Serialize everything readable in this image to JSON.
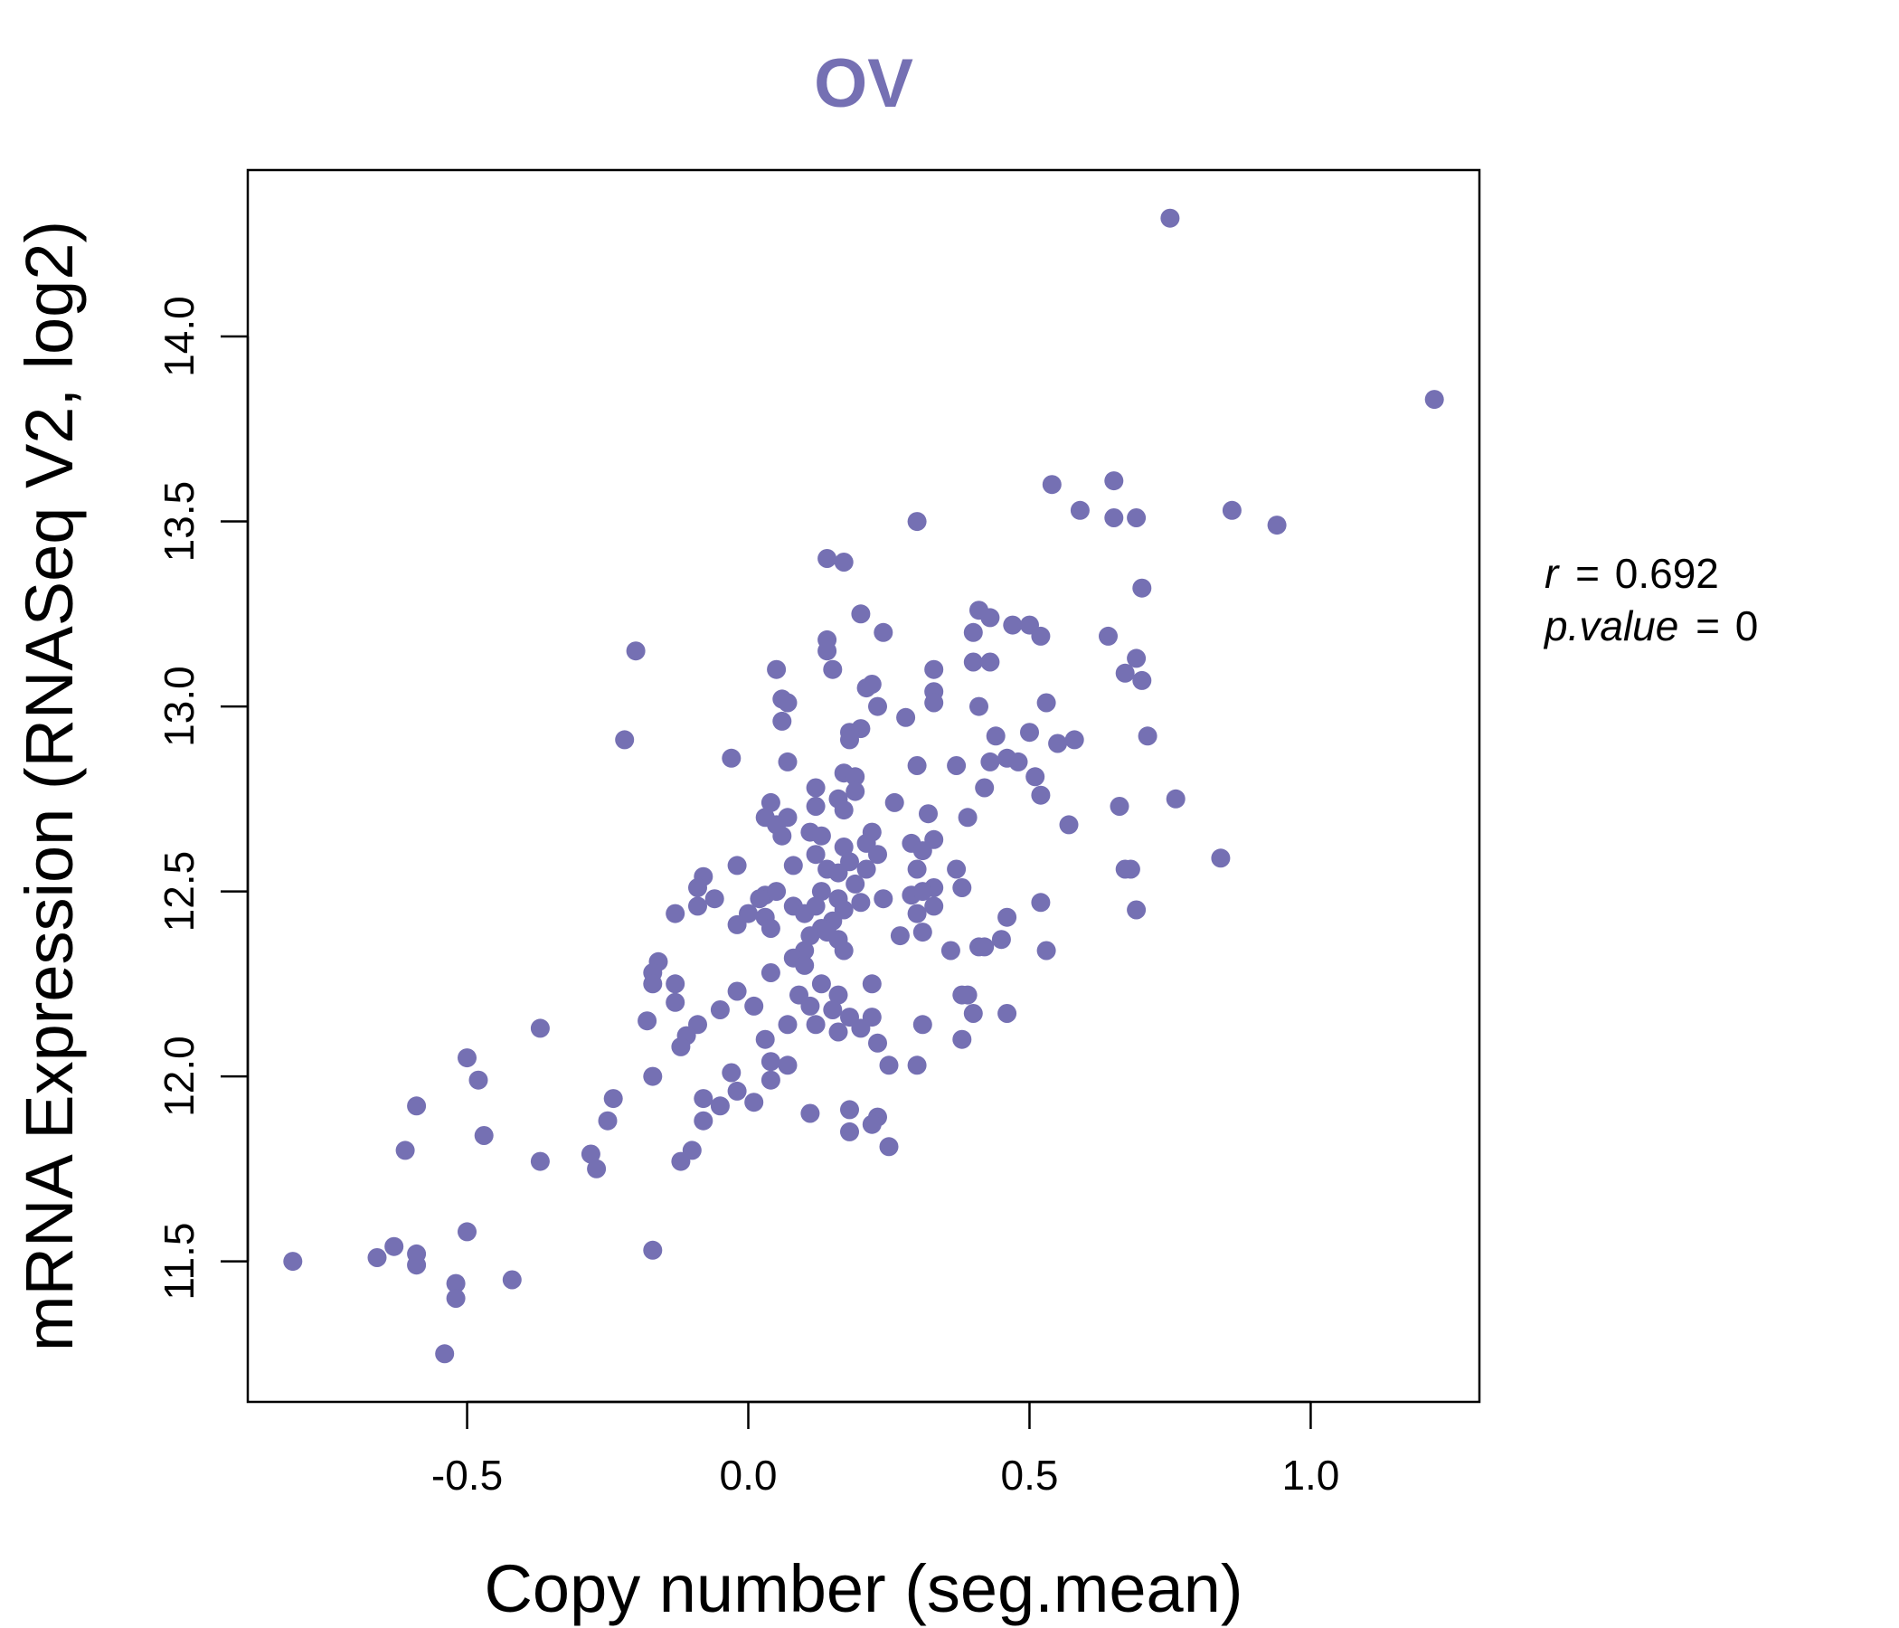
{
  "chart_data": {
    "type": "scatter",
    "title": "OV",
    "xlabel": "Copy number (seg.mean)",
    "ylabel": "mRNA Expression (RNASeq V2, log2)",
    "xlim": [
      -0.89,
      1.3
    ],
    "ylim": [
      11.12,
      14.45
    ],
    "xticks": [
      -0.5,
      0.0,
      0.5,
      1.0
    ],
    "xtick_labels": [
      "-0.5",
      "0.0",
      "0.5",
      "1.0"
    ],
    "yticks": [
      11.5,
      12.0,
      12.5,
      13.0,
      13.5,
      14.0
    ],
    "ytick_labels": [
      "11.5",
      "12.0",
      "12.5",
      "13.0",
      "13.5",
      "14.0"
    ],
    "grid": false,
    "colors": {
      "points": "#7570b3",
      "title": "#7570b3",
      "axes": "#000000"
    },
    "annotations": [
      {
        "label": "r",
        "value": "0.692"
      },
      {
        "label": "p.value",
        "value": "0"
      }
    ],
    "points": [
      [
        0.75,
        14.32
      ],
      [
        1.22,
        13.83
      ],
      [
        0.65,
        13.61
      ],
      [
        0.54,
        13.6
      ],
      [
        0.59,
        13.53
      ],
      [
        0.86,
        13.53
      ],
      [
        0.65,
        13.51
      ],
      [
        0.69,
        13.51
      ],
      [
        0.94,
        13.49
      ],
      [
        0.3,
        13.5
      ],
      [
        0.14,
        13.4
      ],
      [
        0.17,
        13.39
      ],
      [
        0.7,
        13.32
      ],
      [
        0.2,
        13.25
      ],
      [
        0.41,
        13.26
      ],
      [
        0.43,
        13.24
      ],
      [
        0.24,
        13.2
      ],
      [
        0.4,
        13.2
      ],
      [
        0.47,
        13.22
      ],
      [
        0.5,
        13.22
      ],
      [
        0.52,
        13.19
      ],
      [
        0.64,
        13.19
      ],
      [
        0.14,
        13.18
      ],
      [
        0.14,
        13.15
      ],
      [
        -0.2,
        13.15
      ],
      [
        0.4,
        13.12
      ],
      [
        0.43,
        13.12
      ],
      [
        0.69,
        13.13
      ],
      [
        0.05,
        13.1
      ],
      [
        0.15,
        13.1
      ],
      [
        0.33,
        13.1
      ],
      [
        0.67,
        13.09
      ],
      [
        0.7,
        13.07
      ],
      [
        0.21,
        13.05
      ],
      [
        0.22,
        13.06
      ],
      [
        0.33,
        13.04
      ],
      [
        0.06,
        13.02
      ],
      [
        0.07,
        13.01
      ],
      [
        0.33,
        13.01
      ],
      [
        0.23,
        13.0
      ],
      [
        0.41,
        13.0
      ],
      [
        0.53,
        13.01
      ],
      [
        0.28,
        12.97
      ],
      [
        0.06,
        12.96
      ],
      [
        0.2,
        12.94
      ],
      [
        0.18,
        12.93
      ],
      [
        0.18,
        12.91
      ],
      [
        0.5,
        12.93
      ],
      [
        0.44,
        12.92
      ],
      [
        -0.22,
        12.91
      ],
      [
        0.55,
        12.9
      ],
      [
        0.58,
        12.91
      ],
      [
        0.71,
        12.92
      ],
      [
        -0.03,
        12.86
      ],
      [
        0.07,
        12.85
      ],
      [
        0.3,
        12.84
      ],
      [
        0.37,
        12.84
      ],
      [
        0.43,
        12.85
      ],
      [
        0.46,
        12.86
      ],
      [
        0.48,
        12.85
      ],
      [
        0.17,
        12.82
      ],
      [
        0.19,
        12.81
      ],
      [
        0.51,
        12.81
      ],
      [
        0.12,
        12.78
      ],
      [
        0.19,
        12.77
      ],
      [
        0.42,
        12.78
      ],
      [
        0.16,
        12.75
      ],
      [
        0.04,
        12.74
      ],
      [
        0.26,
        12.74
      ],
      [
        0.52,
        12.76
      ],
      [
        0.76,
        12.75
      ],
      [
        0.12,
        12.73
      ],
      [
        0.17,
        12.72
      ],
      [
        0.66,
        12.73
      ],
      [
        0.03,
        12.7
      ],
      [
        0.07,
        12.7
      ],
      [
        0.05,
        12.68
      ],
      [
        0.32,
        12.71
      ],
      [
        0.39,
        12.7
      ],
      [
        0.57,
        12.68
      ],
      [
        0.11,
        12.66
      ],
      [
        0.13,
        12.65
      ],
      [
        0.22,
        12.66
      ],
      [
        0.06,
        12.65
      ],
      [
        0.21,
        12.63
      ],
      [
        0.29,
        12.63
      ],
      [
        0.31,
        12.61
      ],
      [
        0.33,
        12.64
      ],
      [
        0.17,
        12.62
      ],
      [
        0.12,
        12.6
      ],
      [
        0.18,
        12.58
      ],
      [
        0.23,
        12.6
      ],
      [
        0.84,
        12.59
      ],
      [
        -0.02,
        12.57
      ],
      [
        0.08,
        12.57
      ],
      [
        0.14,
        12.56
      ],
      [
        0.16,
        12.55
      ],
      [
        0.21,
        12.56
      ],
      [
        0.3,
        12.56
      ],
      [
        0.37,
        12.56
      ],
      [
        0.67,
        12.56
      ],
      [
        0.68,
        12.56
      ],
      [
        -0.08,
        12.54
      ],
      [
        0.19,
        12.52
      ],
      [
        0.33,
        12.51
      ],
      [
        0.38,
        12.51
      ],
      [
        -0.09,
        12.51
      ],
      [
        0.03,
        12.49
      ],
      [
        0.05,
        12.5
      ],
      [
        0.13,
        12.5
      ],
      [
        0.29,
        12.49
      ],
      [
        0.31,
        12.5
      ],
      [
        0.16,
        12.48
      ],
      [
        -0.06,
        12.48
      ],
      [
        0.02,
        12.48
      ],
      [
        0.2,
        12.47
      ],
      [
        0.24,
        12.48
      ],
      [
        -0.09,
        12.46
      ],
      [
        0.08,
        12.46
      ],
      [
        0.1,
        12.44
      ],
      [
        0.12,
        12.46
      ],
      [
        0.17,
        12.45
      ],
      [
        0.3,
        12.44
      ],
      [
        0.33,
        12.46
      ],
      [
        0.46,
        12.43
      ],
      [
        0.52,
        12.47
      ],
      [
        0.69,
        12.45
      ],
      [
        -0.13,
        12.44
      ],
      [
        0.0,
        12.44
      ],
      [
        0.03,
        12.43
      ],
      [
        0.15,
        12.42
      ],
      [
        0.13,
        12.4
      ],
      [
        -0.02,
        12.41
      ],
      [
        0.04,
        12.4
      ],
      [
        0.11,
        12.38
      ],
      [
        0.14,
        12.39
      ],
      [
        0.16,
        12.37
      ],
      [
        0.27,
        12.38
      ],
      [
        0.31,
        12.39
      ],
      [
        0.45,
        12.37
      ],
      [
        0.41,
        12.35
      ],
      [
        0.42,
        12.35
      ],
      [
        0.1,
        12.34
      ],
      [
        0.17,
        12.34
      ],
      [
        0.36,
        12.34
      ],
      [
        0.53,
        12.34
      ],
      [
        0.08,
        12.32
      ],
      [
        -0.16,
        12.31
      ],
      [
        0.1,
        12.3
      ],
      [
        0.04,
        12.28
      ],
      [
        -0.17,
        12.28
      ],
      [
        -0.17,
        12.25
      ],
      [
        -0.13,
        12.25
      ],
      [
        0.13,
        12.25
      ],
      [
        0.22,
        12.25
      ],
      [
        -0.02,
        12.23
      ],
      [
        0.09,
        12.22
      ],
      [
        0.16,
        12.22
      ],
      [
        0.38,
        12.22
      ],
      [
        0.39,
        12.22
      ],
      [
        -0.13,
        12.2
      ],
      [
        0.01,
        12.19
      ],
      [
        0.11,
        12.19
      ],
      [
        0.15,
        12.18
      ],
      [
        -0.05,
        12.18
      ],
      [
        0.4,
        12.17
      ],
      [
        0.46,
        12.17
      ],
      [
        -0.18,
        12.15
      ],
      [
        -0.09,
        12.14
      ],
      [
        0.18,
        12.16
      ],
      [
        0.22,
        12.16
      ],
      [
        0.12,
        12.14
      ],
      [
        0.07,
        12.14
      ],
      [
        0.31,
        12.14
      ],
      [
        -0.37,
        12.13
      ],
      [
        0.16,
        12.12
      ],
      [
        0.2,
        12.13
      ],
      [
        -0.11,
        12.11
      ],
      [
        0.03,
        12.1
      ],
      [
        -0.12,
        12.08
      ],
      [
        0.23,
        12.09
      ],
      [
        0.38,
        12.1
      ],
      [
        -0.5,
        12.05
      ],
      [
        0.04,
        12.04
      ],
      [
        0.07,
        12.03
      ],
      [
        0.25,
        12.03
      ],
      [
        0.3,
        12.03
      ],
      [
        -0.03,
        12.01
      ],
      [
        -0.17,
        12.0
      ],
      [
        0.04,
        11.99
      ],
      [
        -0.48,
        11.99
      ],
      [
        -0.02,
        11.96
      ],
      [
        0.01,
        11.93
      ],
      [
        -0.24,
        11.94
      ],
      [
        -0.08,
        11.94
      ],
      [
        -0.59,
        11.92
      ],
      [
        -0.05,
        11.92
      ],
      [
        0.18,
        11.91
      ],
      [
        0.11,
        11.9
      ],
      [
        0.23,
        11.89
      ],
      [
        -0.08,
        11.88
      ],
      [
        -0.25,
        11.88
      ],
      [
        0.22,
        11.87
      ],
      [
        -0.47,
        11.84
      ],
      [
        0.18,
        11.85
      ],
      [
        0.25,
        11.81
      ],
      [
        -0.61,
        11.8
      ],
      [
        -0.1,
        11.8
      ],
      [
        -0.28,
        11.79
      ],
      [
        -0.37,
        11.77
      ],
      [
        -0.12,
        11.77
      ],
      [
        -0.27,
        11.75
      ],
      [
        -0.5,
        11.58
      ],
      [
        -0.63,
        11.54
      ],
      [
        -0.17,
        11.53
      ],
      [
        -0.59,
        11.52
      ],
      [
        -0.66,
        11.51
      ],
      [
        -0.81,
        11.5
      ],
      [
        -0.59,
        11.49
      ],
      [
        -0.42,
        11.45
      ],
      [
        -0.52,
        11.44
      ],
      [
        -0.52,
        11.4
      ],
      [
        -0.54,
        11.25
      ]
    ]
  }
}
